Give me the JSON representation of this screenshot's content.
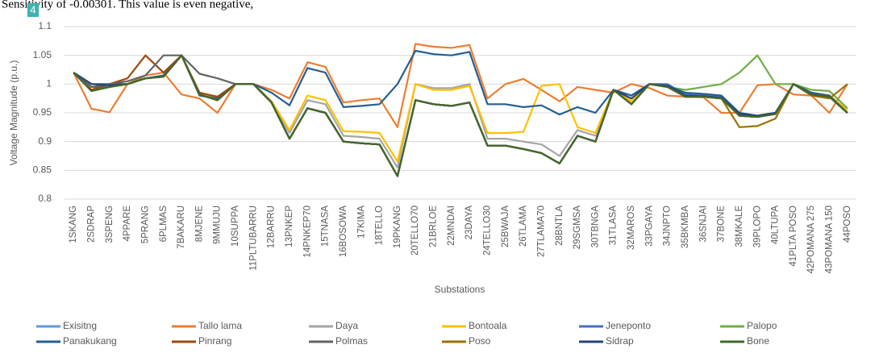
{
  "header_text": "Sensitivity of -0.00301. This value is even negative,",
  "badge": "4",
  "chart_data": {
    "type": "line",
    "y_label": "Voltage Magnitude (p.u.)",
    "x_label": "Substations",
    "categories": [
      "1SKANG",
      "2SDRAP",
      "3SPENG",
      "4PPARE",
      "5PRANG",
      "6PLMAS",
      "7BAKARU",
      "8MJENE",
      "9MMUJU",
      "10SUPPA",
      "11PLTUBARRU",
      "12BARRU",
      "13PNKEP",
      "14PNKEP70",
      "15TNASA",
      "16BOSOWA",
      "17KIMA",
      "18TELLO",
      "19PKANG",
      "20TELLO70",
      "21BRLOE",
      "22MNDAI",
      "23DAYA",
      "24TELLO30",
      "25BWAJA",
      "26TLAMA",
      "27TLAMA70",
      "28BNTLA",
      "29SGMSA",
      "30TBNGA",
      "31TLASA",
      "32MAROS",
      "33PGAYA",
      "34JNPTO",
      "35BKMBA",
      "36SNJAI",
      "37BONE",
      "38MKALE",
      "39PLOPO",
      "40LTUPA",
      "41PLTA POSO",
      "42POMANA 275",
      "43POMANA 150",
      "44POSO"
    ],
    "ylim": [
      0.8,
      1.1
    ],
    "yticks": [
      0.8,
      0.85,
      0.9,
      0.95,
      1,
      1.05,
      1.1
    ],
    "grid": true,
    "legend": "bottom",
    "series": [
      {
        "name": "Exisitng",
        "color": "#5b9bd5",
        "values": [
          1.02,
          0.988,
          0.995,
          1.0,
          1.01,
          1.013,
          1.05,
          0.982,
          0.972,
          1.0,
          1.0,
          0.968,
          0.905,
          0.958,
          0.95,
          0.9,
          0.897,
          0.895,
          0.84,
          0.972,
          0.965,
          0.962,
          0.968,
          0.893,
          0.893,
          0.887,
          0.88,
          0.862,
          0.91,
          0.9,
          0.99,
          0.965,
          1.0,
          0.995,
          0.978,
          0.978,
          0.975,
          0.945,
          0.943,
          0.948,
          1.0,
          0.982,
          0.978,
          0.95
        ]
      },
      {
        "name": "Tallo lama",
        "color": "#ed7d31",
        "values": [
          1.02,
          0.957,
          0.951,
          1.0,
          1.015,
          1.02,
          0.982,
          0.975,
          0.95,
          1.0,
          1.0,
          0.99,
          0.975,
          1.038,
          1.03,
          0.968,
          0.972,
          0.975,
          0.925,
          1.07,
          1.065,
          1.063,
          1.068,
          0.975,
          1.0,
          1.009,
          0.99,
          0.97,
          0.995,
          0.99,
          0.985,
          1.0,
          0.993,
          0.98,
          0.978,
          0.977,
          0.95,
          0.95,
          0.998,
          1.0,
          0.982,
          0.98,
          0.95,
          1.0
        ]
      },
      {
        "name": "Daya",
        "color": "#a5a5a5",
        "values": [
          1.02,
          0.99,
          1.0,
          1.0,
          1.01,
          1.013,
          1.05,
          0.985,
          0.975,
          1.0,
          1.0,
          0.97,
          0.915,
          0.972,
          0.965,
          0.91,
          0.908,
          0.905,
          0.855,
          1.0,
          0.993,
          0.993,
          1.0,
          0.905,
          0.905,
          0.9,
          0.895,
          0.875,
          0.92,
          0.91,
          0.99,
          0.97,
          1.0,
          0.995,
          0.98,
          0.98,
          0.978,
          0.948,
          0.945,
          0.95,
          1.0,
          0.985,
          0.98,
          0.955
        ]
      },
      {
        "name": "Bontoala",
        "color": "#ffc000",
        "values": [
          1.02,
          0.99,
          1.0,
          1.0,
          1.01,
          1.013,
          1.05,
          0.985,
          0.975,
          1.0,
          1.0,
          0.97,
          0.92,
          0.98,
          0.972,
          0.918,
          0.917,
          0.915,
          0.865,
          1.0,
          0.99,
          0.99,
          0.997,
          0.915,
          0.915,
          0.917,
          0.997,
          1.0,
          0.925,
          0.915,
          0.99,
          0.97,
          1.0,
          0.995,
          0.98,
          0.98,
          0.978,
          0.948,
          0.945,
          0.95,
          1.0,
          0.985,
          0.98,
          0.955
        ]
      },
      {
        "name": "Jeneponto",
        "color": "#4472c4",
        "values": [
          1.02,
          0.995,
          0.995,
          1.0,
          1.01,
          1.013,
          1.05,
          0.982,
          0.972,
          1.0,
          1.0,
          0.968,
          0.905,
          0.958,
          0.95,
          0.9,
          0.897,
          0.895,
          0.84,
          0.972,
          0.965,
          0.962,
          0.968,
          0.893,
          0.893,
          0.887,
          0.88,
          0.862,
          0.91,
          0.9,
          0.99,
          0.98,
          1.0,
          1.0,
          0.982,
          0.98,
          0.977,
          0.945,
          0.943,
          0.948,
          1.0,
          0.982,
          0.978,
          0.95
        ]
      },
      {
        "name": "Palopo",
        "color": "#70ad47",
        "values": [
          1.02,
          0.988,
          0.995,
          1.0,
          1.01,
          1.013,
          1.05,
          0.982,
          0.972,
          1.0,
          1.0,
          0.968,
          0.905,
          0.958,
          0.95,
          0.9,
          0.897,
          0.895,
          0.84,
          0.972,
          0.965,
          0.962,
          0.968,
          0.893,
          0.893,
          0.887,
          0.88,
          0.862,
          0.91,
          0.9,
          0.99,
          0.965,
          1.0,
          0.995,
          0.99,
          0.995,
          1.0,
          1.02,
          1.05,
          1.0,
          1.0,
          0.99,
          0.988,
          0.958
        ]
      },
      {
        "name": "Panakukang",
        "color": "#255e91",
        "values": [
          1.02,
          1.0,
          1.0,
          1.0,
          1.01,
          1.015,
          1.05,
          0.98,
          0.975,
          1.0,
          1.0,
          0.985,
          0.963,
          1.028,
          1.02,
          0.96,
          0.962,
          0.965,
          1.0,
          1.058,
          1.052,
          1.05,
          1.056,
          0.965,
          0.965,
          0.96,
          0.963,
          0.947,
          0.96,
          0.95,
          0.99,
          0.98,
          1.0,
          0.997,
          0.985,
          0.983,
          0.98,
          0.95,
          0.945,
          0.95,
          1.0,
          0.985,
          0.98,
          0.95
        ]
      },
      {
        "name": "Pinrang",
        "color": "#9e480e",
        "values": [
          1.02,
          0.99,
          1.0,
          1.01,
          1.05,
          1.02,
          1.05,
          0.985,
          0.978,
          1.0,
          1.0,
          0.968,
          0.905,
          0.958,
          0.95,
          0.9,
          0.897,
          0.895,
          0.84,
          0.972,
          0.965,
          0.962,
          0.968,
          0.893,
          0.893,
          0.887,
          0.88,
          0.862,
          0.91,
          0.9,
          0.99,
          0.965,
          1.0,
          0.995,
          0.978,
          0.978,
          0.975,
          0.945,
          0.943,
          0.948,
          1.0,
          0.982,
          0.978,
          0.95
        ]
      },
      {
        "name": "Polmas",
        "color": "#636363",
        "values": [
          1.02,
          0.995,
          1.0,
          1.005,
          1.015,
          1.05,
          1.05,
          1.018,
          1.01,
          1.0,
          1.0,
          0.968,
          0.905,
          0.958,
          0.95,
          0.9,
          0.897,
          0.895,
          0.84,
          0.972,
          0.965,
          0.962,
          0.968,
          0.893,
          0.893,
          0.887,
          0.88,
          0.862,
          0.91,
          0.9,
          0.99,
          0.965,
          1.0,
          0.995,
          0.978,
          0.978,
          0.975,
          0.945,
          0.943,
          0.948,
          1.0,
          0.982,
          0.978,
          0.95
        ]
      },
      {
        "name": "Poso",
        "color": "#997300",
        "values": [
          1.02,
          0.988,
          0.995,
          1.0,
          1.01,
          1.013,
          1.05,
          0.982,
          0.972,
          1.0,
          1.0,
          0.968,
          0.905,
          0.958,
          0.95,
          0.9,
          0.897,
          0.895,
          0.84,
          0.972,
          0.965,
          0.962,
          0.968,
          0.893,
          0.893,
          0.887,
          0.88,
          0.862,
          0.91,
          0.9,
          0.99,
          0.965,
          1.0,
          0.995,
          0.978,
          0.978,
          0.975,
          0.925,
          0.927,
          0.94,
          1.0,
          0.98,
          0.975,
          1.0
        ]
      },
      {
        "name": "Sidrap",
        "color": "#264478",
        "values": [
          1.02,
          1.0,
          0.998,
          1.0,
          1.01,
          1.013,
          1.05,
          0.982,
          0.972,
          1.0,
          1.0,
          0.968,
          0.905,
          0.958,
          0.95,
          0.9,
          0.897,
          0.895,
          0.84,
          0.972,
          0.965,
          0.962,
          0.968,
          0.893,
          0.893,
          0.887,
          0.88,
          0.862,
          0.91,
          0.9,
          0.99,
          0.975,
          1.0,
          0.997,
          0.98,
          0.979,
          0.976,
          0.948,
          0.945,
          0.95,
          1.0,
          0.982,
          0.978,
          0.95
        ]
      },
      {
        "name": "Bone",
        "color": "#43682b",
        "values": [
          1.02,
          0.988,
          0.995,
          1.0,
          1.01,
          1.013,
          1.05,
          0.982,
          0.972,
          1.0,
          1.0,
          0.968,
          0.905,
          0.958,
          0.95,
          0.9,
          0.897,
          0.895,
          0.84,
          0.972,
          0.965,
          0.962,
          0.968,
          0.893,
          0.893,
          0.887,
          0.88,
          0.862,
          0.91,
          0.9,
          0.99,
          0.965,
          1.0,
          0.995,
          0.978,
          0.978,
          0.975,
          0.945,
          0.943,
          0.948,
          1.0,
          0.982,
          0.978,
          0.95
        ]
      }
    ]
  }
}
